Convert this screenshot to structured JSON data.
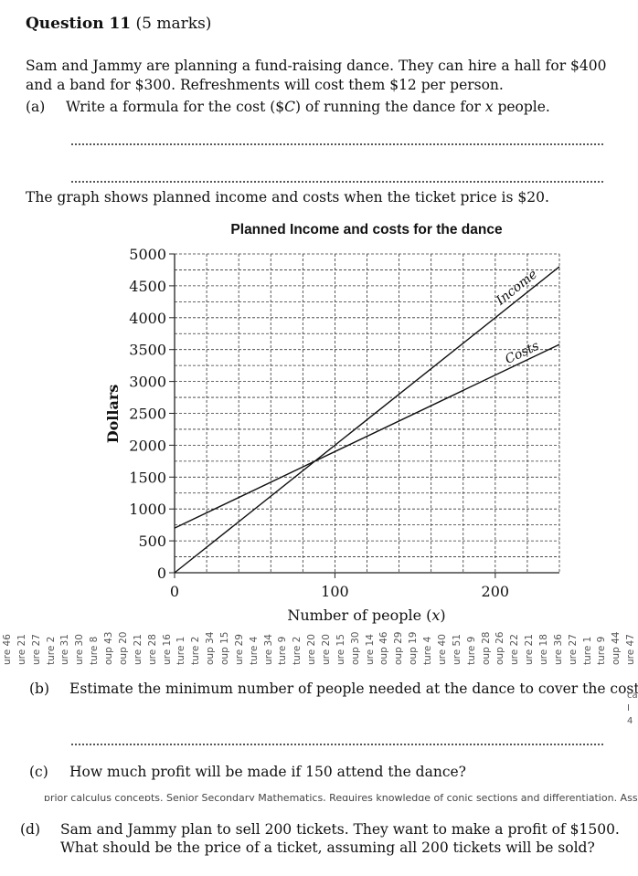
{
  "question": {
    "title": "Question 11",
    "marks": "(5 marks)"
  },
  "intro": "Sam and Jammy are planning a fund-raising dance. They can hire a hall for $400 and a band for $300. Refreshments will cost them $12 per person.",
  "parts": {
    "a": {
      "label": "(a)",
      "text": "Write a formula for the cost ($C) of running the dance for x people."
    },
    "graph_intro": "The graph shows planned income and costs when the ticket price is $20.",
    "b": {
      "label": "(b)",
      "text": "Estimate the minimum number of people needed at the dance to cover the costs."
    },
    "c": {
      "label": "(c)",
      "text": "How much profit will be made if 150 attend the dance?"
    },
    "d": {
      "label": "(d)",
      "line1": "Sam and Jammy plan to sell 200 tickets. They want to make a profit of $1500.",
      "line2": "What should be the price of a ticket, assuming all 200 tickets will be sold?"
    }
  },
  "chart_data": {
    "type": "line",
    "title": "Planned Income and costs for the dance",
    "xlabel": "Number of people (x)",
    "ylabel": "Dollars",
    "xlim": [
      0,
      240
    ],
    "ylim": [
      0,
      5000
    ],
    "x_ticks": [
      0,
      100,
      200
    ],
    "y_ticks": [
      0,
      500,
      1000,
      1500,
      2000,
      2500,
      3000,
      3500,
      4000,
      4500,
      5000
    ],
    "grid": true,
    "series": [
      {
        "name": "Income",
        "x": [
          0,
          240
        ],
        "y": [
          0,
          4800
        ]
      },
      {
        "name": "Costs",
        "x": [
          0,
          240
        ],
        "y": [
          700,
          3580
        ]
      }
    ]
  },
  "margin_marks": [
    "ure 46",
    "ure 21",
    "ure 27",
    "ture 2",
    "ure 31",
    "ure 30",
    "ture 8",
    "oup 43",
    "oup 20",
    "ure 21",
    "ure 28",
    "ure 16",
    "ture 1",
    "ture 2",
    "oup 34",
    "oup 15",
    "ure 29",
    "ture 4",
    "ure 34",
    "ture 9",
    "ture 2",
    "ure 20",
    "ure 20",
    "ure 15",
    "oup 30",
    "ure 14",
    "oup 46",
    "oup 29",
    "oup 19",
    "ture 4",
    "ure 40",
    "ure 51",
    "ture 9",
    "oup 28",
    "oup 26",
    "ure 22",
    "ure 21",
    "ure 18",
    "ure 36",
    "ure 27",
    "ture 1",
    "ture 9",
    "oup 44",
    "ure 47"
  ],
  "cutoff_text": "prior calculus concepts. Senior Secondary Mathematics, Requires knowledge of conic sections and differentiation. Assumes",
  "side_fragments": [
    "ca",
    "I",
    "4"
  ]
}
